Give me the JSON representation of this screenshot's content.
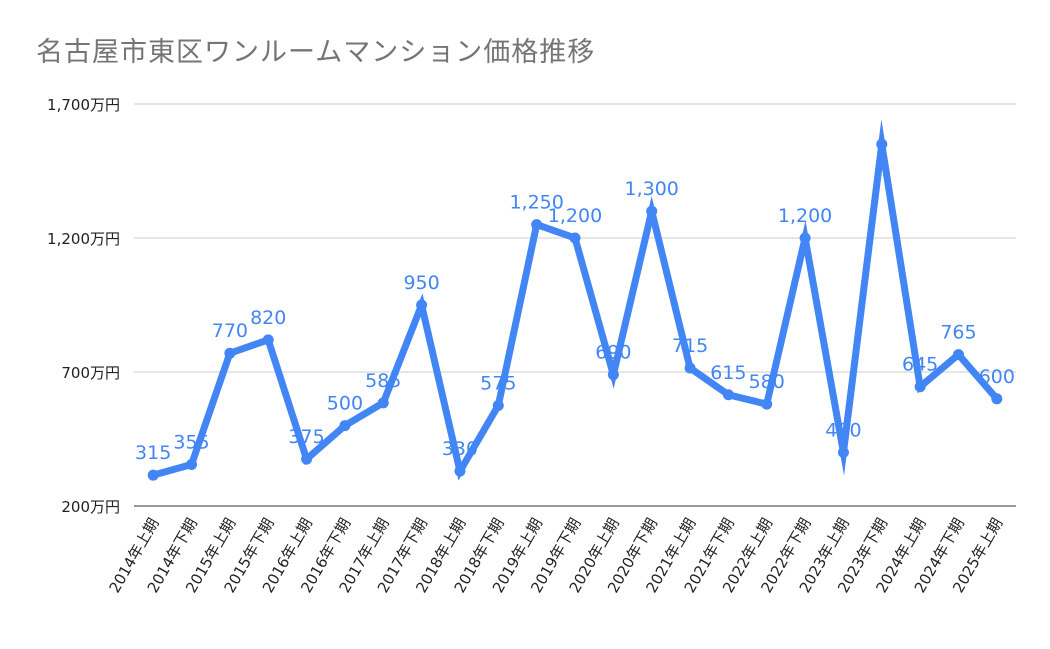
{
  "chart_data": {
    "type": "line",
    "title": "名古屋市東区ワンルームマンション価格推移",
    "categories": [
      "2014年上期",
      "2014年下期",
      "2015年上期",
      "2015年下期",
      "2016年上期",
      "2016年下期",
      "2017年上期",
      "2017年下期",
      "2018年上期",
      "2018年下期",
      "2019年上期",
      "2019年下期",
      "2020年上期",
      "2020年下期",
      "2021年上期",
      "2021年下期",
      "2022年上期",
      "2022年下期",
      "2023年上期",
      "2023年下期",
      "2024年上期",
      "2024年下期",
      "2025年上期"
    ],
    "values": [
      315,
      355,
      770,
      820,
      375,
      500,
      585,
      950,
      330,
      575,
      1250,
      1200,
      690,
      1300,
      715,
      615,
      580,
      1200,
      400,
      1550,
      645,
      765,
      600
    ],
    "data_labels": [
      "315",
      "355",
      "770",
      "820",
      "375",
      "500",
      "585",
      "950",
      "330",
      "575",
      "1,250",
      "1,200",
      "690",
      "1,300",
      "715",
      "615",
      "580",
      "1,200",
      "400",
      "",
      "645",
      "765",
      "600"
    ],
    "ylim": [
      200,
      1700
    ],
    "yticks": [
      200,
      700,
      1200,
      1700
    ],
    "ytick_labels": [
      "200万円",
      "700万円",
      "1,200万円",
      "1,700万円"
    ],
    "grid": true,
    "color": "#4285f4"
  }
}
